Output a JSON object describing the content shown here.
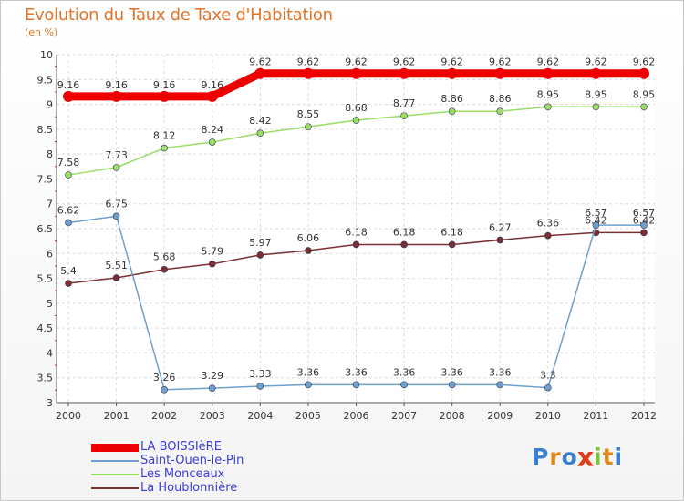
{
  "chart_data": {
    "type": "line",
    "title": "Evolution du Taux de Taxe d'Habitation",
    "ylabel": "(en %)",
    "x": [
      "2000",
      "2001",
      "2002",
      "2003",
      "2004",
      "2005",
      "2006",
      "2007",
      "2008",
      "2009",
      "2010",
      "2011",
      "2012"
    ],
    "ylim": [
      3,
      10
    ],
    "yticks": [
      "3",
      "3.5",
      "4",
      "4.5",
      "5",
      "5.5",
      "6",
      "6.5",
      "7",
      "7.5",
      "8",
      "8.5",
      "9",
      "9.5",
      "10"
    ],
    "grid": true,
    "legend_position": "bottom-left",
    "series": [
      {
        "name": "LA BOISSIèRE",
        "color": "#ee0000",
        "values": [
          9.16,
          9.16,
          9.16,
          9.16,
          9.62,
          9.62,
          9.62,
          9.62,
          9.62,
          9.62,
          9.62,
          9.62,
          9.62
        ],
        "labels": [
          "9.16",
          "9.16",
          "9.16",
          "9.16",
          "9.62",
          "9.62",
          "9.62",
          "9.62",
          "9.62",
          "9.62",
          "9.62",
          "9.62",
          "9.62"
        ]
      },
      {
        "name": "Saint-Ouen-le-Pin",
        "color": "#6fa0cc",
        "values": [
          6.62,
          6.75,
          3.26,
          3.29,
          3.33,
          3.36,
          3.36,
          3.36,
          3.36,
          3.36,
          3.3,
          6.57,
          6.57
        ],
        "labels": [
          "6.62",
          "6.75",
          "3.26",
          "3.29",
          "3.33",
          "3.36",
          "3.36",
          "3.36",
          "3.36",
          "3.36",
          "3.3",
          "6.57",
          "6.57"
        ]
      },
      {
        "name": "Les Monceaux",
        "color": "#99dd66",
        "values": [
          7.58,
          7.73,
          8.12,
          8.24,
          8.42,
          8.55,
          8.68,
          8.77,
          8.86,
          8.86,
          8.95,
          8.95,
          8.95
        ],
        "labels": [
          "7.58",
          "7.73",
          "8.12",
          "8.24",
          "8.42",
          "8.55",
          "8.68",
          "8.77",
          "8.86",
          "8.86",
          "8.95",
          "8.95",
          "8.95"
        ]
      },
      {
        "name": "La Houblonnière",
        "color": "#7a3030",
        "values": [
          5.4,
          5.51,
          5.68,
          5.79,
          5.97,
          6.06,
          6.18,
          6.18,
          6.18,
          6.27,
          6.36,
          6.42,
          6.42
        ],
        "labels": [
          "5.4",
          "5.51",
          "5.68",
          "5.79",
          "5.97",
          "6.06",
          "6.18",
          "6.18",
          "6.18",
          "6.27",
          "6.36",
          "6.42",
          "6.42"
        ]
      }
    ]
  },
  "legend": {
    "items": [
      {
        "label": "LA BOISSIèRE"
      },
      {
        "label": "Saint-Ouen-le-Pin"
      },
      {
        "label": "Les Monceaux"
      },
      {
        "label": "La Houblonnière"
      }
    ]
  },
  "logo": {
    "text": "Proxiti",
    "letters": [
      "P",
      "r",
      "o",
      "x",
      "i",
      "t",
      "i"
    ],
    "colors": [
      "#3a7fd0",
      "#e08a1a",
      "#3a7fd0",
      "#e23a1a",
      "#7cc23a",
      "#e08a1a",
      "#3a7fd0"
    ]
  }
}
